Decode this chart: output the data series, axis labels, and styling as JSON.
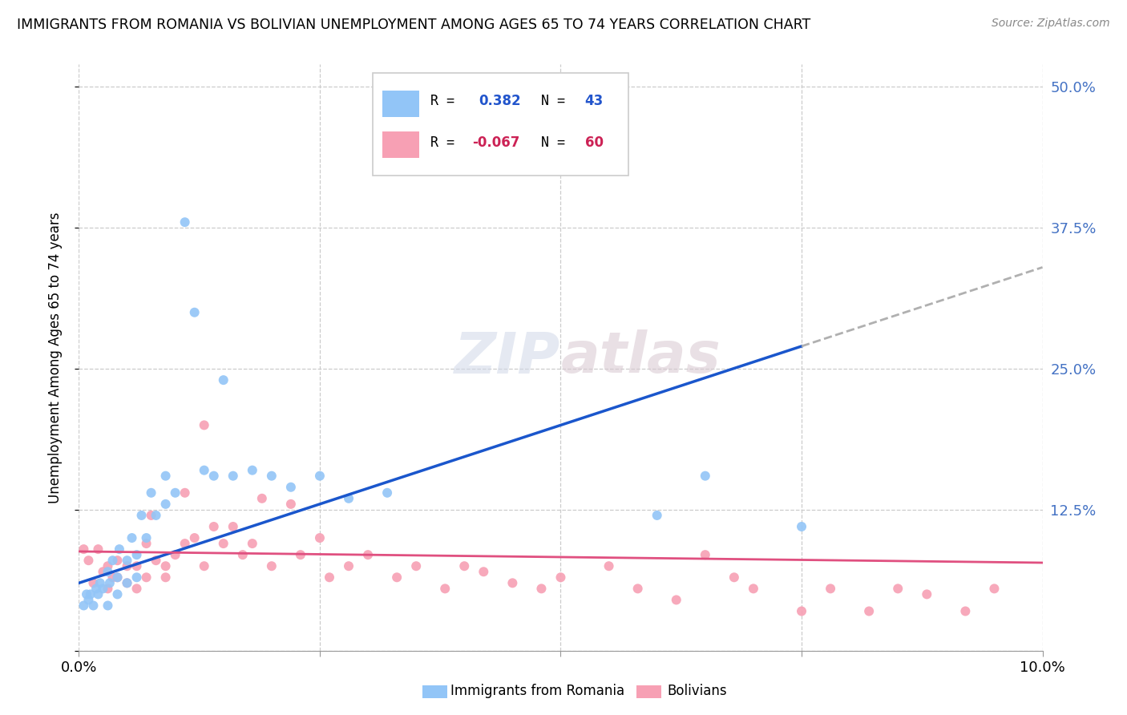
{
  "title": "IMMIGRANTS FROM ROMANIA VS BOLIVIAN UNEMPLOYMENT AMONG AGES 65 TO 74 YEARS CORRELATION CHART",
  "source": "Source: ZipAtlas.com",
  "ylabel": "Unemployment Among Ages 65 to 74 years",
  "xlim": [
    0.0,
    0.1
  ],
  "ylim": [
    0.0,
    0.52
  ],
  "color_romania": "#92c5f7",
  "color_bolivia": "#f7a0b4",
  "color_line_romania": "#1a56cc",
  "color_line_bolivia": "#e05080",
  "color_trend_ext": "#b0b0b0",
  "watermark": "ZIPatlas",
  "romania_x": [
    0.0005,
    0.0008,
    0.001,
    0.0012,
    0.0015,
    0.0018,
    0.002,
    0.0022,
    0.0025,
    0.003,
    0.003,
    0.0032,
    0.0035,
    0.004,
    0.004,
    0.0042,
    0.005,
    0.005,
    0.0055,
    0.006,
    0.006,
    0.0065,
    0.007,
    0.0075,
    0.008,
    0.009,
    0.009,
    0.01,
    0.011,
    0.012,
    0.013,
    0.014,
    0.015,
    0.016,
    0.018,
    0.02,
    0.022,
    0.025,
    0.028,
    0.032,
    0.06,
    0.065,
    0.075
  ],
  "romania_y": [
    0.04,
    0.05,
    0.045,
    0.05,
    0.04,
    0.055,
    0.05,
    0.06,
    0.055,
    0.04,
    0.07,
    0.06,
    0.08,
    0.05,
    0.065,
    0.09,
    0.06,
    0.08,
    0.1,
    0.065,
    0.085,
    0.12,
    0.1,
    0.14,
    0.12,
    0.13,
    0.155,
    0.14,
    0.38,
    0.3,
    0.16,
    0.155,
    0.24,
    0.155,
    0.16,
    0.155,
    0.145,
    0.155,
    0.135,
    0.14,
    0.12,
    0.155,
    0.11
  ],
  "bolivia_x": [
    0.0005,
    0.001,
    0.0015,
    0.002,
    0.0025,
    0.003,
    0.003,
    0.0035,
    0.004,
    0.004,
    0.005,
    0.005,
    0.006,
    0.006,
    0.007,
    0.007,
    0.0075,
    0.008,
    0.009,
    0.009,
    0.01,
    0.011,
    0.011,
    0.012,
    0.013,
    0.013,
    0.014,
    0.015,
    0.016,
    0.017,
    0.018,
    0.019,
    0.02,
    0.022,
    0.023,
    0.025,
    0.026,
    0.028,
    0.03,
    0.033,
    0.035,
    0.038,
    0.04,
    0.042,
    0.045,
    0.048,
    0.05,
    0.055,
    0.058,
    0.062,
    0.065,
    0.068,
    0.07,
    0.075,
    0.078,
    0.082,
    0.085,
    0.088,
    0.092,
    0.095
  ],
  "bolivia_y": [
    0.09,
    0.08,
    0.06,
    0.09,
    0.07,
    0.075,
    0.055,
    0.065,
    0.065,
    0.08,
    0.075,
    0.06,
    0.055,
    0.075,
    0.065,
    0.095,
    0.12,
    0.08,
    0.065,
    0.075,
    0.085,
    0.095,
    0.14,
    0.1,
    0.075,
    0.2,
    0.11,
    0.095,
    0.11,
    0.085,
    0.095,
    0.135,
    0.075,
    0.13,
    0.085,
    0.1,
    0.065,
    0.075,
    0.085,
    0.065,
    0.075,
    0.055,
    0.075,
    0.07,
    0.06,
    0.055,
    0.065,
    0.075,
    0.055,
    0.045,
    0.085,
    0.065,
    0.055,
    0.035,
    0.055,
    0.035,
    0.055,
    0.05,
    0.035,
    0.055
  ],
  "line_romania_x0": 0.0,
  "line_romania_x1": 0.075,
  "line_romania_y0": 0.06,
  "line_romania_y1": 0.27,
  "line_romania_ext_x0": 0.075,
  "line_romania_ext_x1": 0.1,
  "line_romania_ext_y0": 0.27,
  "line_romania_ext_y1": 0.34,
  "line_bolivia_x0": 0.0,
  "line_bolivia_x1": 0.1,
  "line_bolivia_y0": 0.088,
  "line_bolivia_y1": 0.078
}
